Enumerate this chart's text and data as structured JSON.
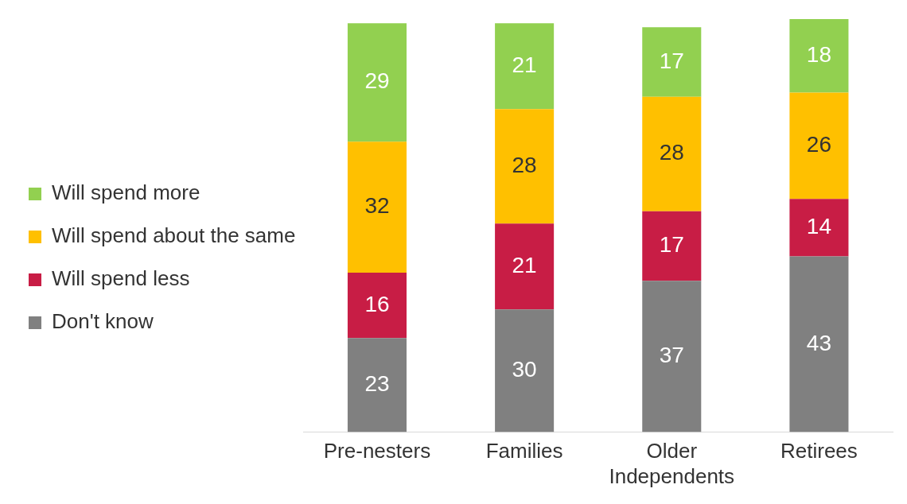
{
  "chart_data": {
    "type": "bar",
    "stacked": true,
    "categories": [
      "Pre-nesters",
      "Families",
      "Older Independents",
      "Retirees"
    ],
    "series": [
      {
        "name": "Don't know",
        "color": "#808080",
        "values": [
          23,
          30,
          37,
          43
        ]
      },
      {
        "name": "Will spend less",
        "color": "#c81d45",
        "values": [
          16,
          21,
          17,
          14
        ]
      },
      {
        "name": "Will spend about the same",
        "color": "#ffc000",
        "values": [
          32,
          28,
          28,
          26
        ]
      },
      {
        "name": "Will spend more",
        "color": "#92d050",
        "values": [
          29,
          21,
          17,
          18
        ]
      }
    ],
    "data_labels": true,
    "legend": "left",
    "grid": false
  }
}
